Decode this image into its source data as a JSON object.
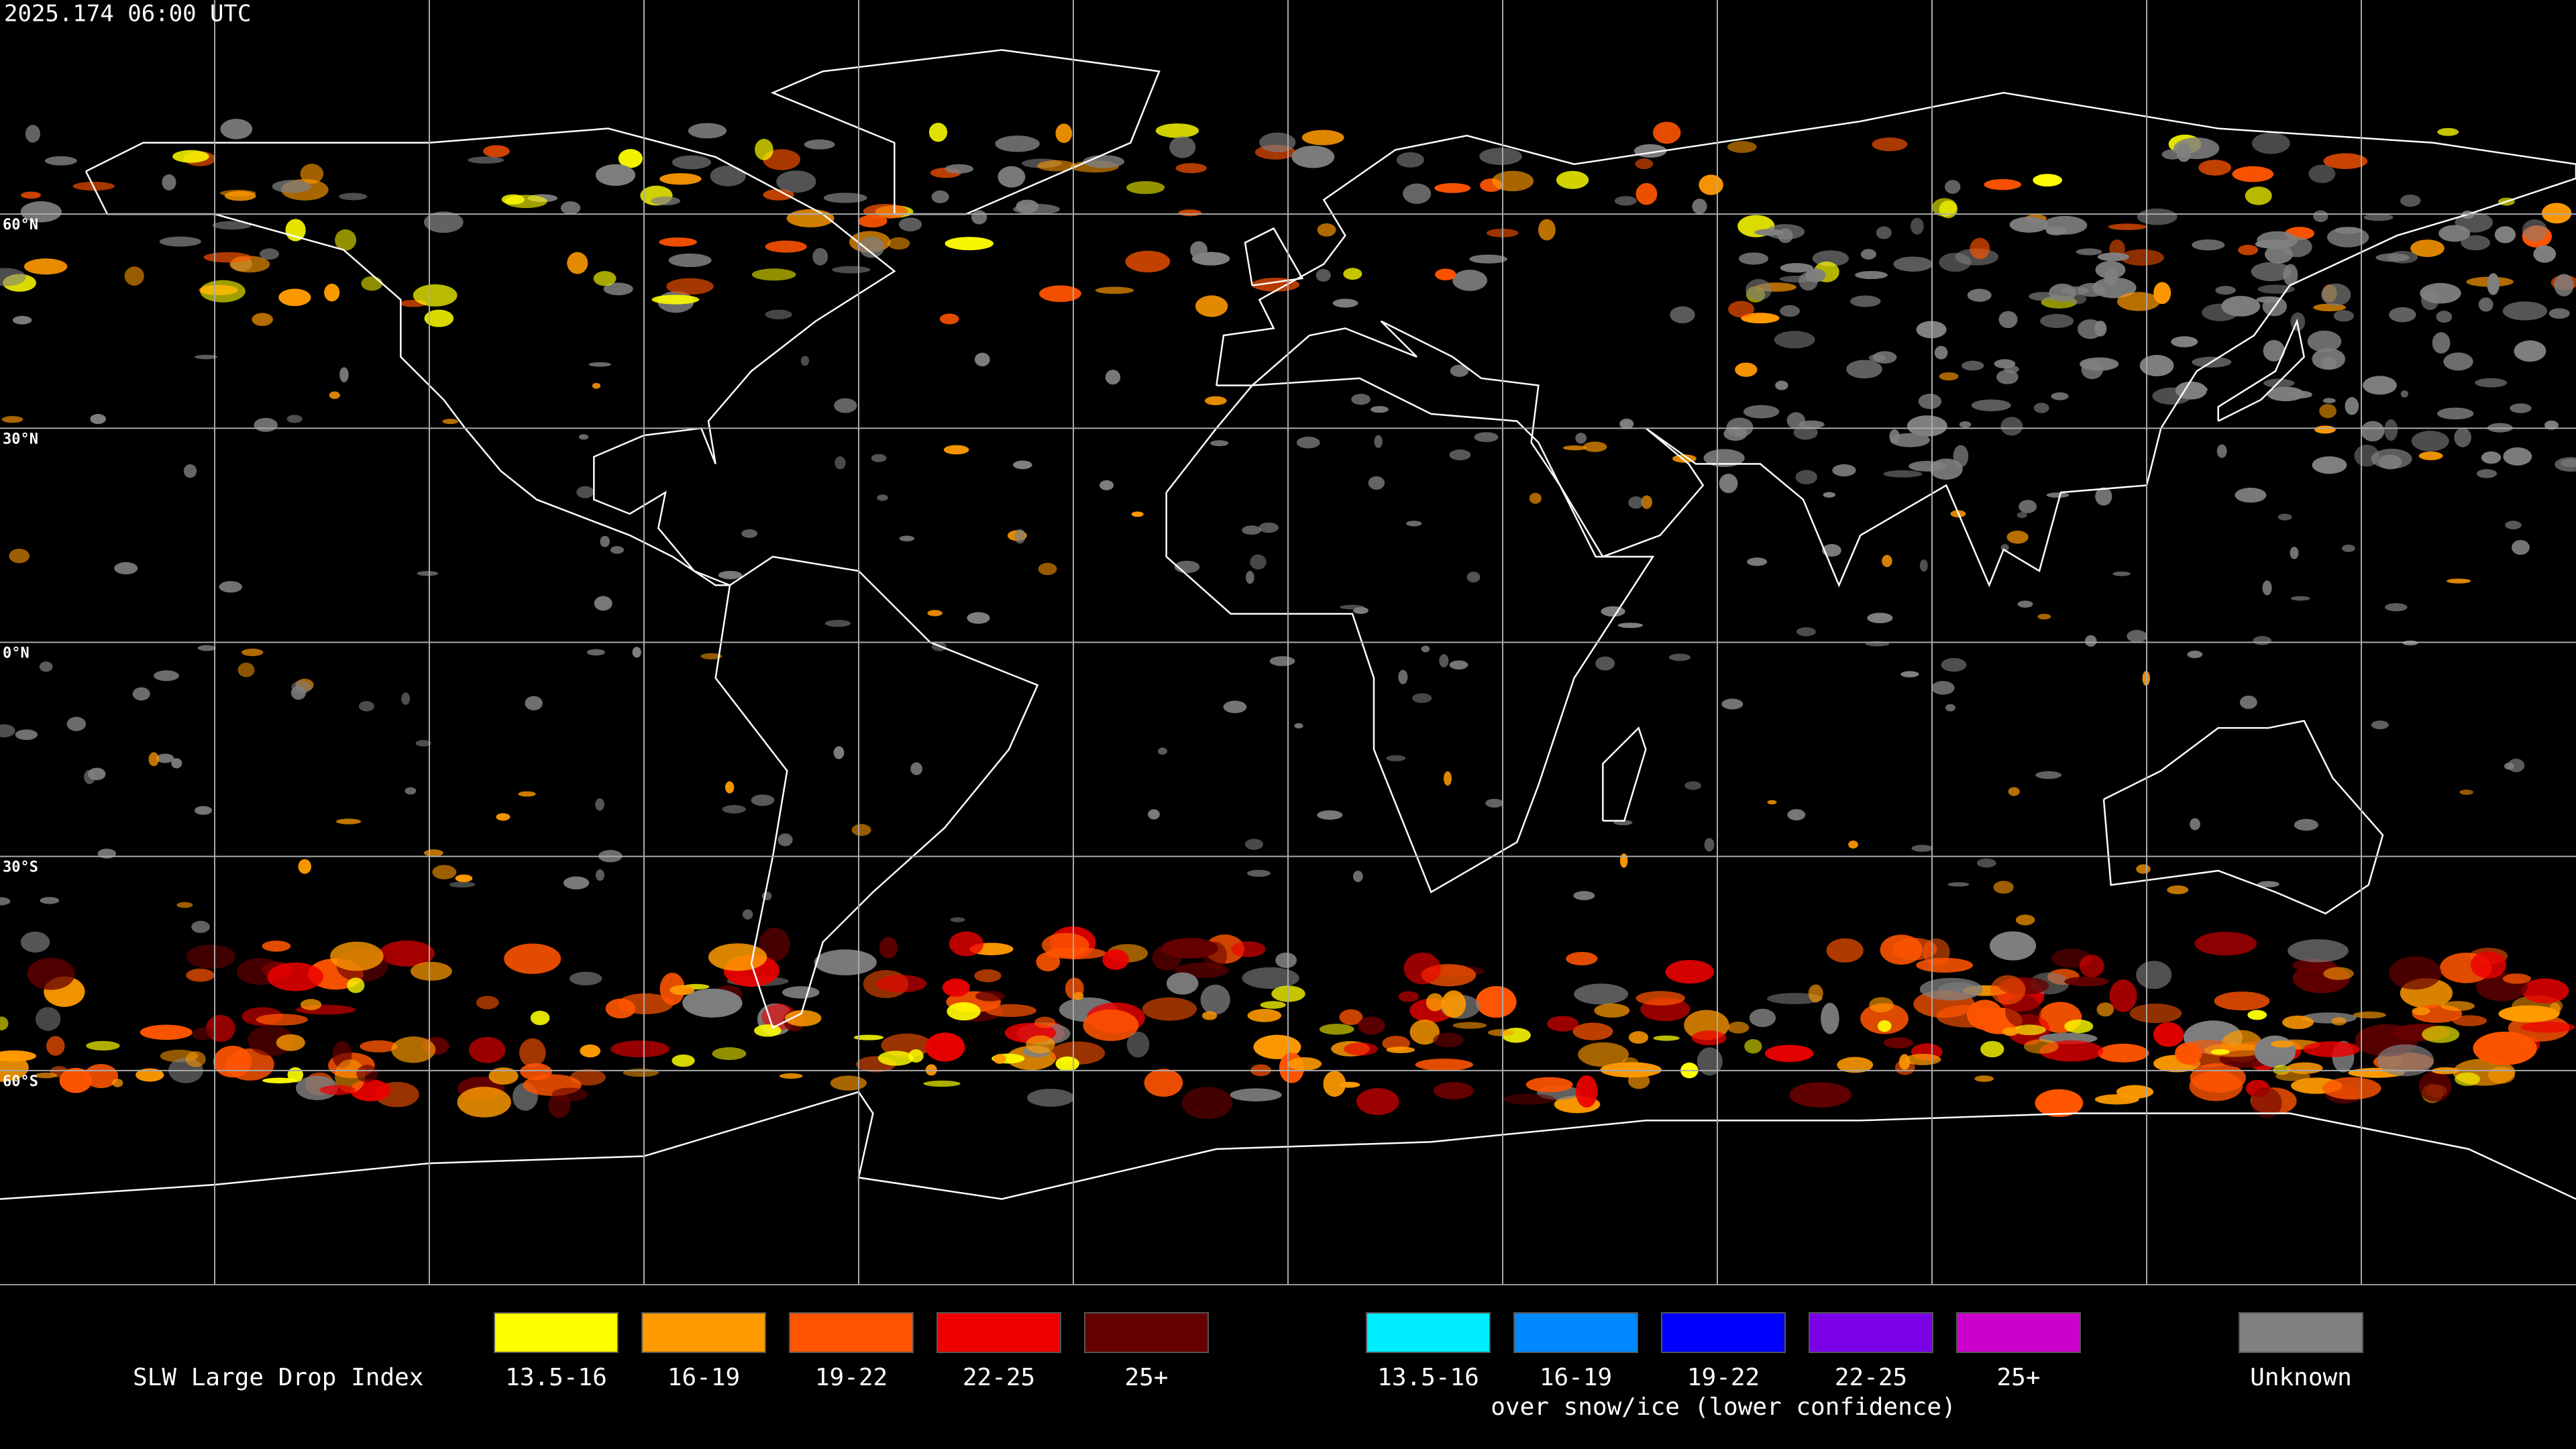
{
  "header": {
    "timestamp": "2025.174 06:00 UTC"
  },
  "map": {
    "lat_labels": [
      "60°N",
      "30°N",
      "0°N",
      "30°S",
      "60°S"
    ]
  },
  "legend": {
    "title": "SLW Large Drop Index",
    "groups": [
      {
        "items": [
          {
            "label": "13.5-16",
            "color": "#ffff00"
          },
          {
            "label": "16-19",
            "color": "#ff9a00"
          },
          {
            "label": "19-22",
            "color": "#ff5500"
          },
          {
            "label": "22-25",
            "color": "#ee0000"
          },
          {
            "label": "25+",
            "color": "#660000"
          }
        ]
      },
      {
        "items": [
          {
            "label": "13.5-16",
            "color": "#00eeff"
          },
          {
            "label": "16-19",
            "color": "#0088ff"
          },
          {
            "label": "19-22",
            "color": "#0000ff"
          },
          {
            "label": "22-25",
            "color": "#7a00e6"
          },
          {
            "label": "25+",
            "color": "#cc00cc"
          }
        ],
        "caption": "over snow/ice (lower confidence)"
      }
    ],
    "unknown": {
      "label": "Unknown",
      "color": "#808080"
    }
  }
}
